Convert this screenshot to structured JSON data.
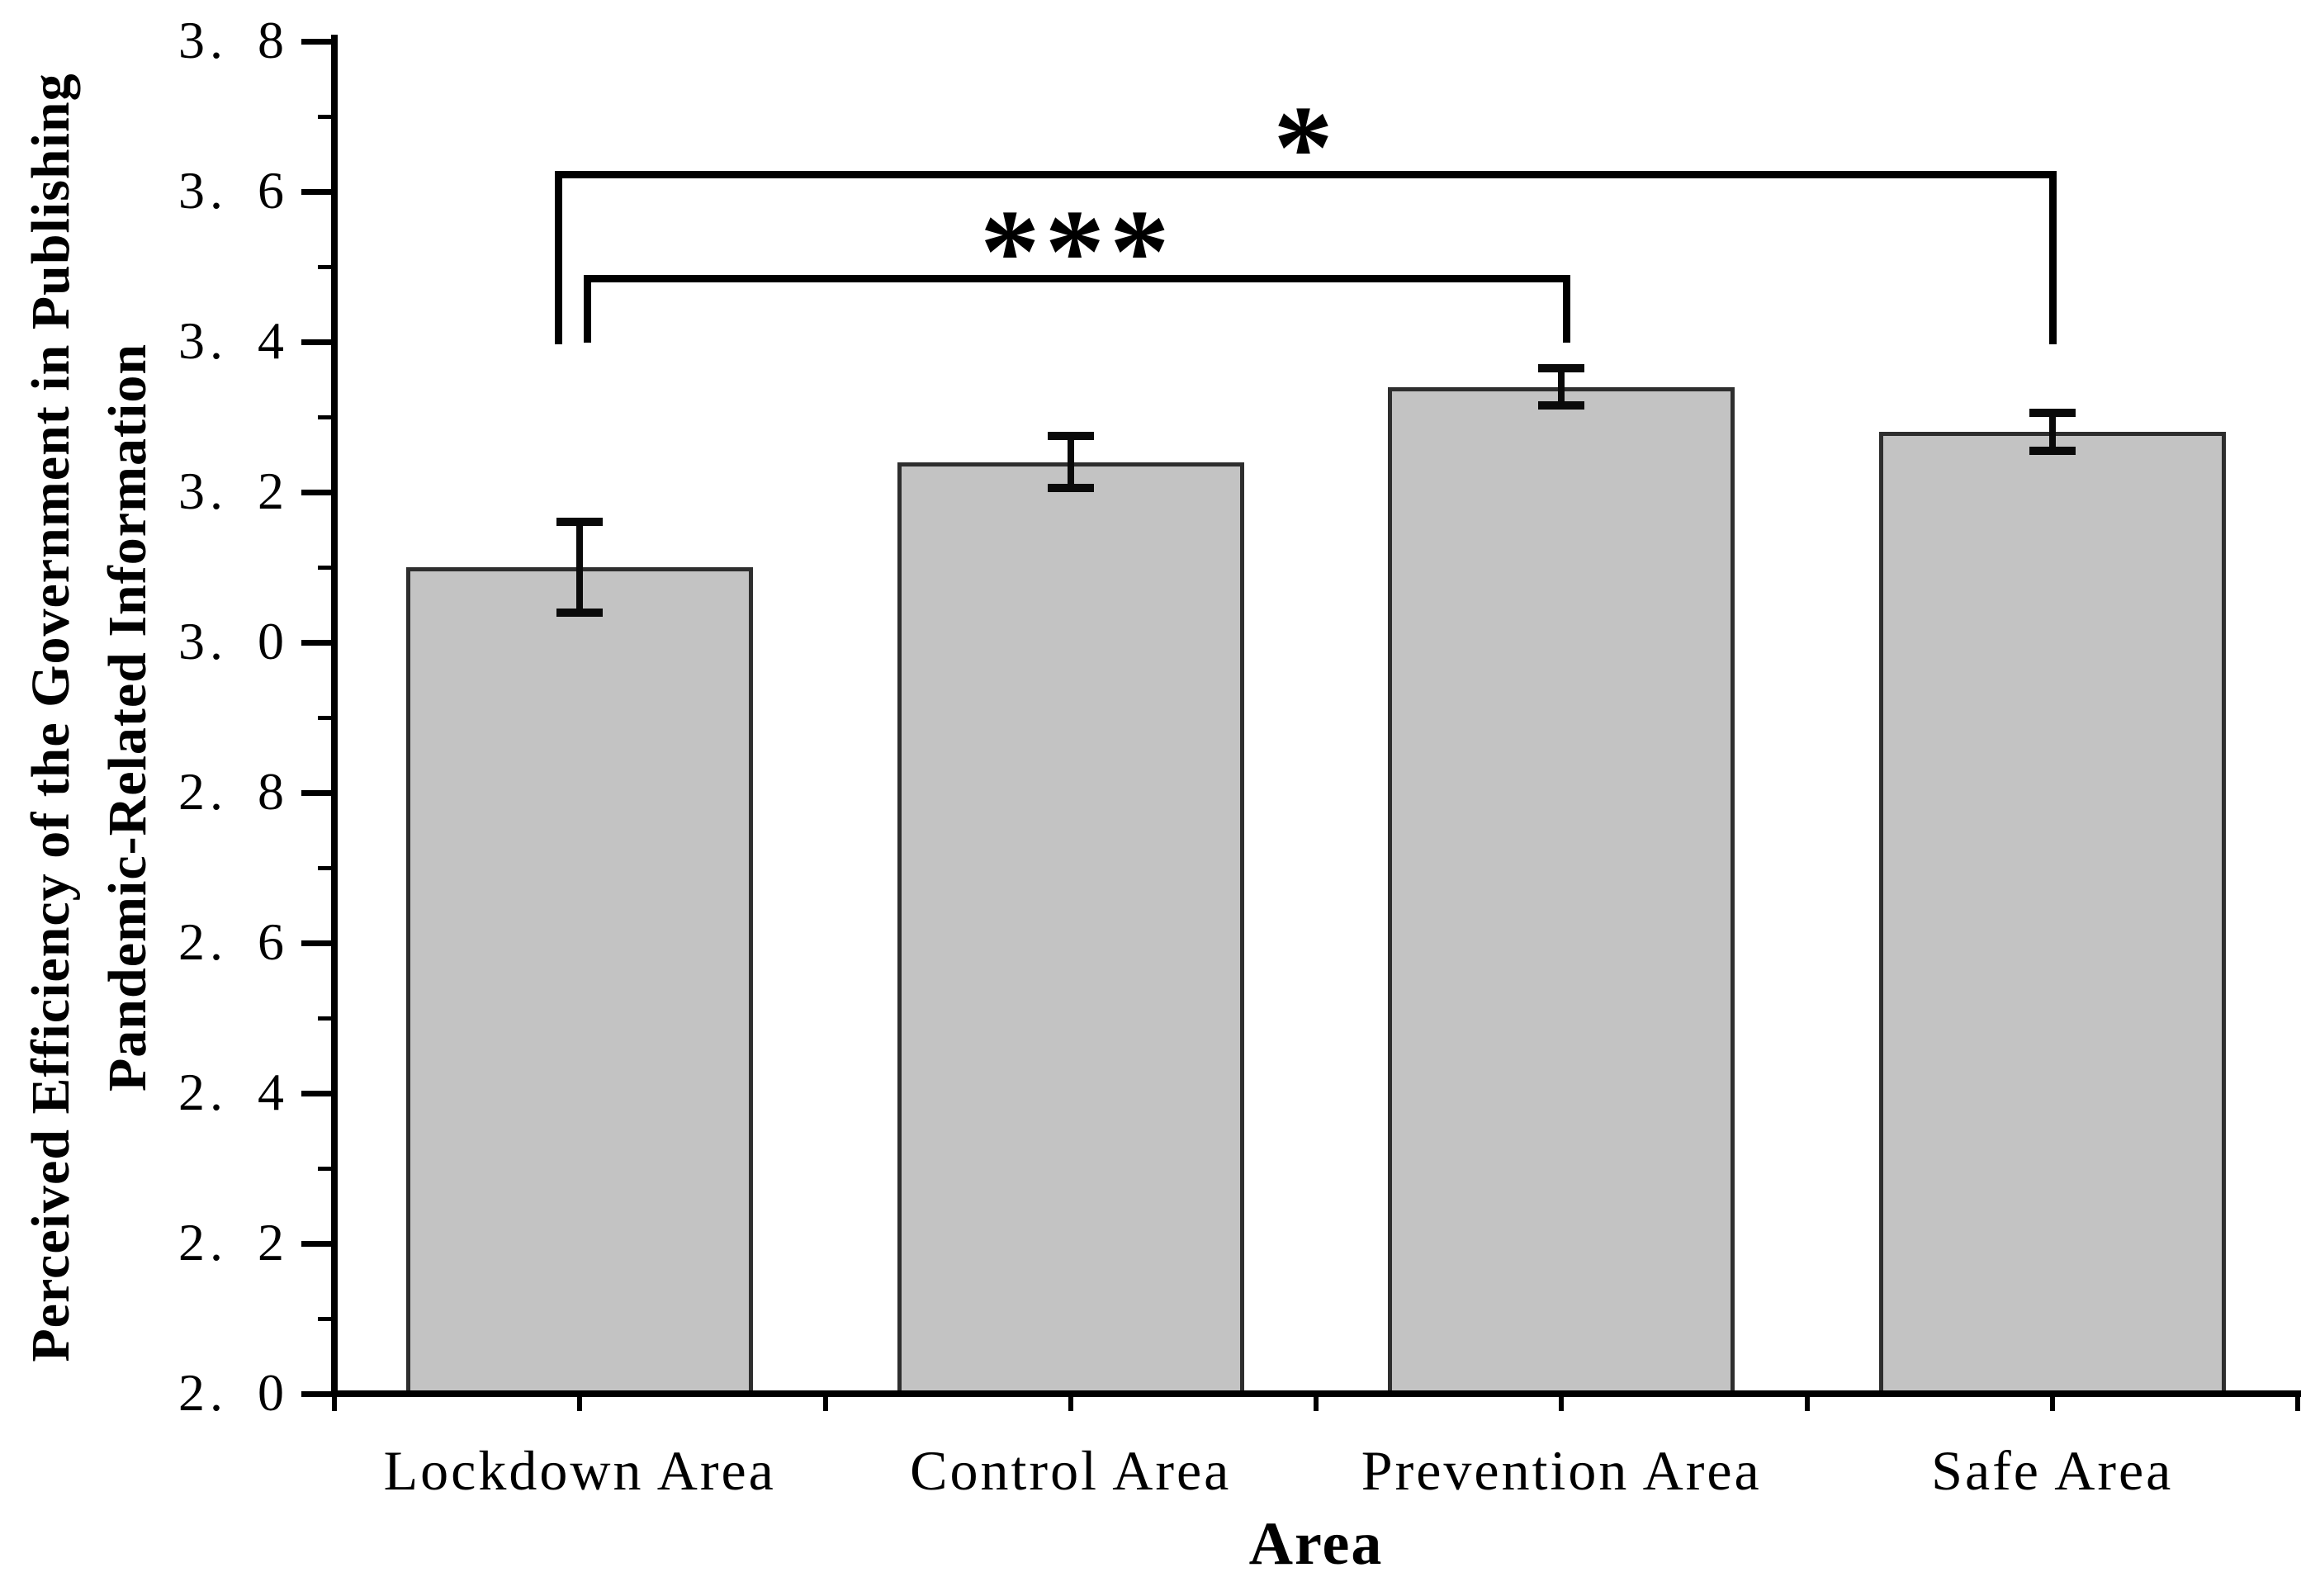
{
  "chart_data": {
    "type": "bar",
    "xlabel": "Area",
    "ylabel": "Perceived Efficiency of the Government in Publishing Pandemic-Related Information",
    "ylabel_line1": "Perceived Efficiency of the Government in Publishing",
    "ylabel_line2": "Pandemic-Related Information",
    "categories": [
      "Lockdown Area",
      "Control Area",
      "Prevention Area",
      "Safe Area"
    ],
    "values": [
      3.1,
      3.24,
      3.34,
      3.28
    ],
    "error_bars": [
      0.06,
      0.035,
      0.025,
      0.025
    ],
    "ylim": [
      2.0,
      3.8
    ],
    "ytick_step": 0.2,
    "minor_tick_step": 0.1,
    "ytick_labels": [
      "2. 0",
      "2. 2",
      "2. 4",
      "2. 6",
      "2. 8",
      "3. 0",
      "3. 2",
      "3. 4",
      "3. 6",
      "3. 8"
    ],
    "grid": false,
    "legend": null,
    "bar_fill_color": "#c3c3c3",
    "bar_edge_color": "#2e2e2e",
    "axis_color": "#000000",
    "significance": [
      {
        "from": "Lockdown Area",
        "to": "Prevention Area",
        "label": "***"
      },
      {
        "from": "Lockdown Area",
        "to": "Safe Area",
        "label": "*"
      }
    ]
  }
}
